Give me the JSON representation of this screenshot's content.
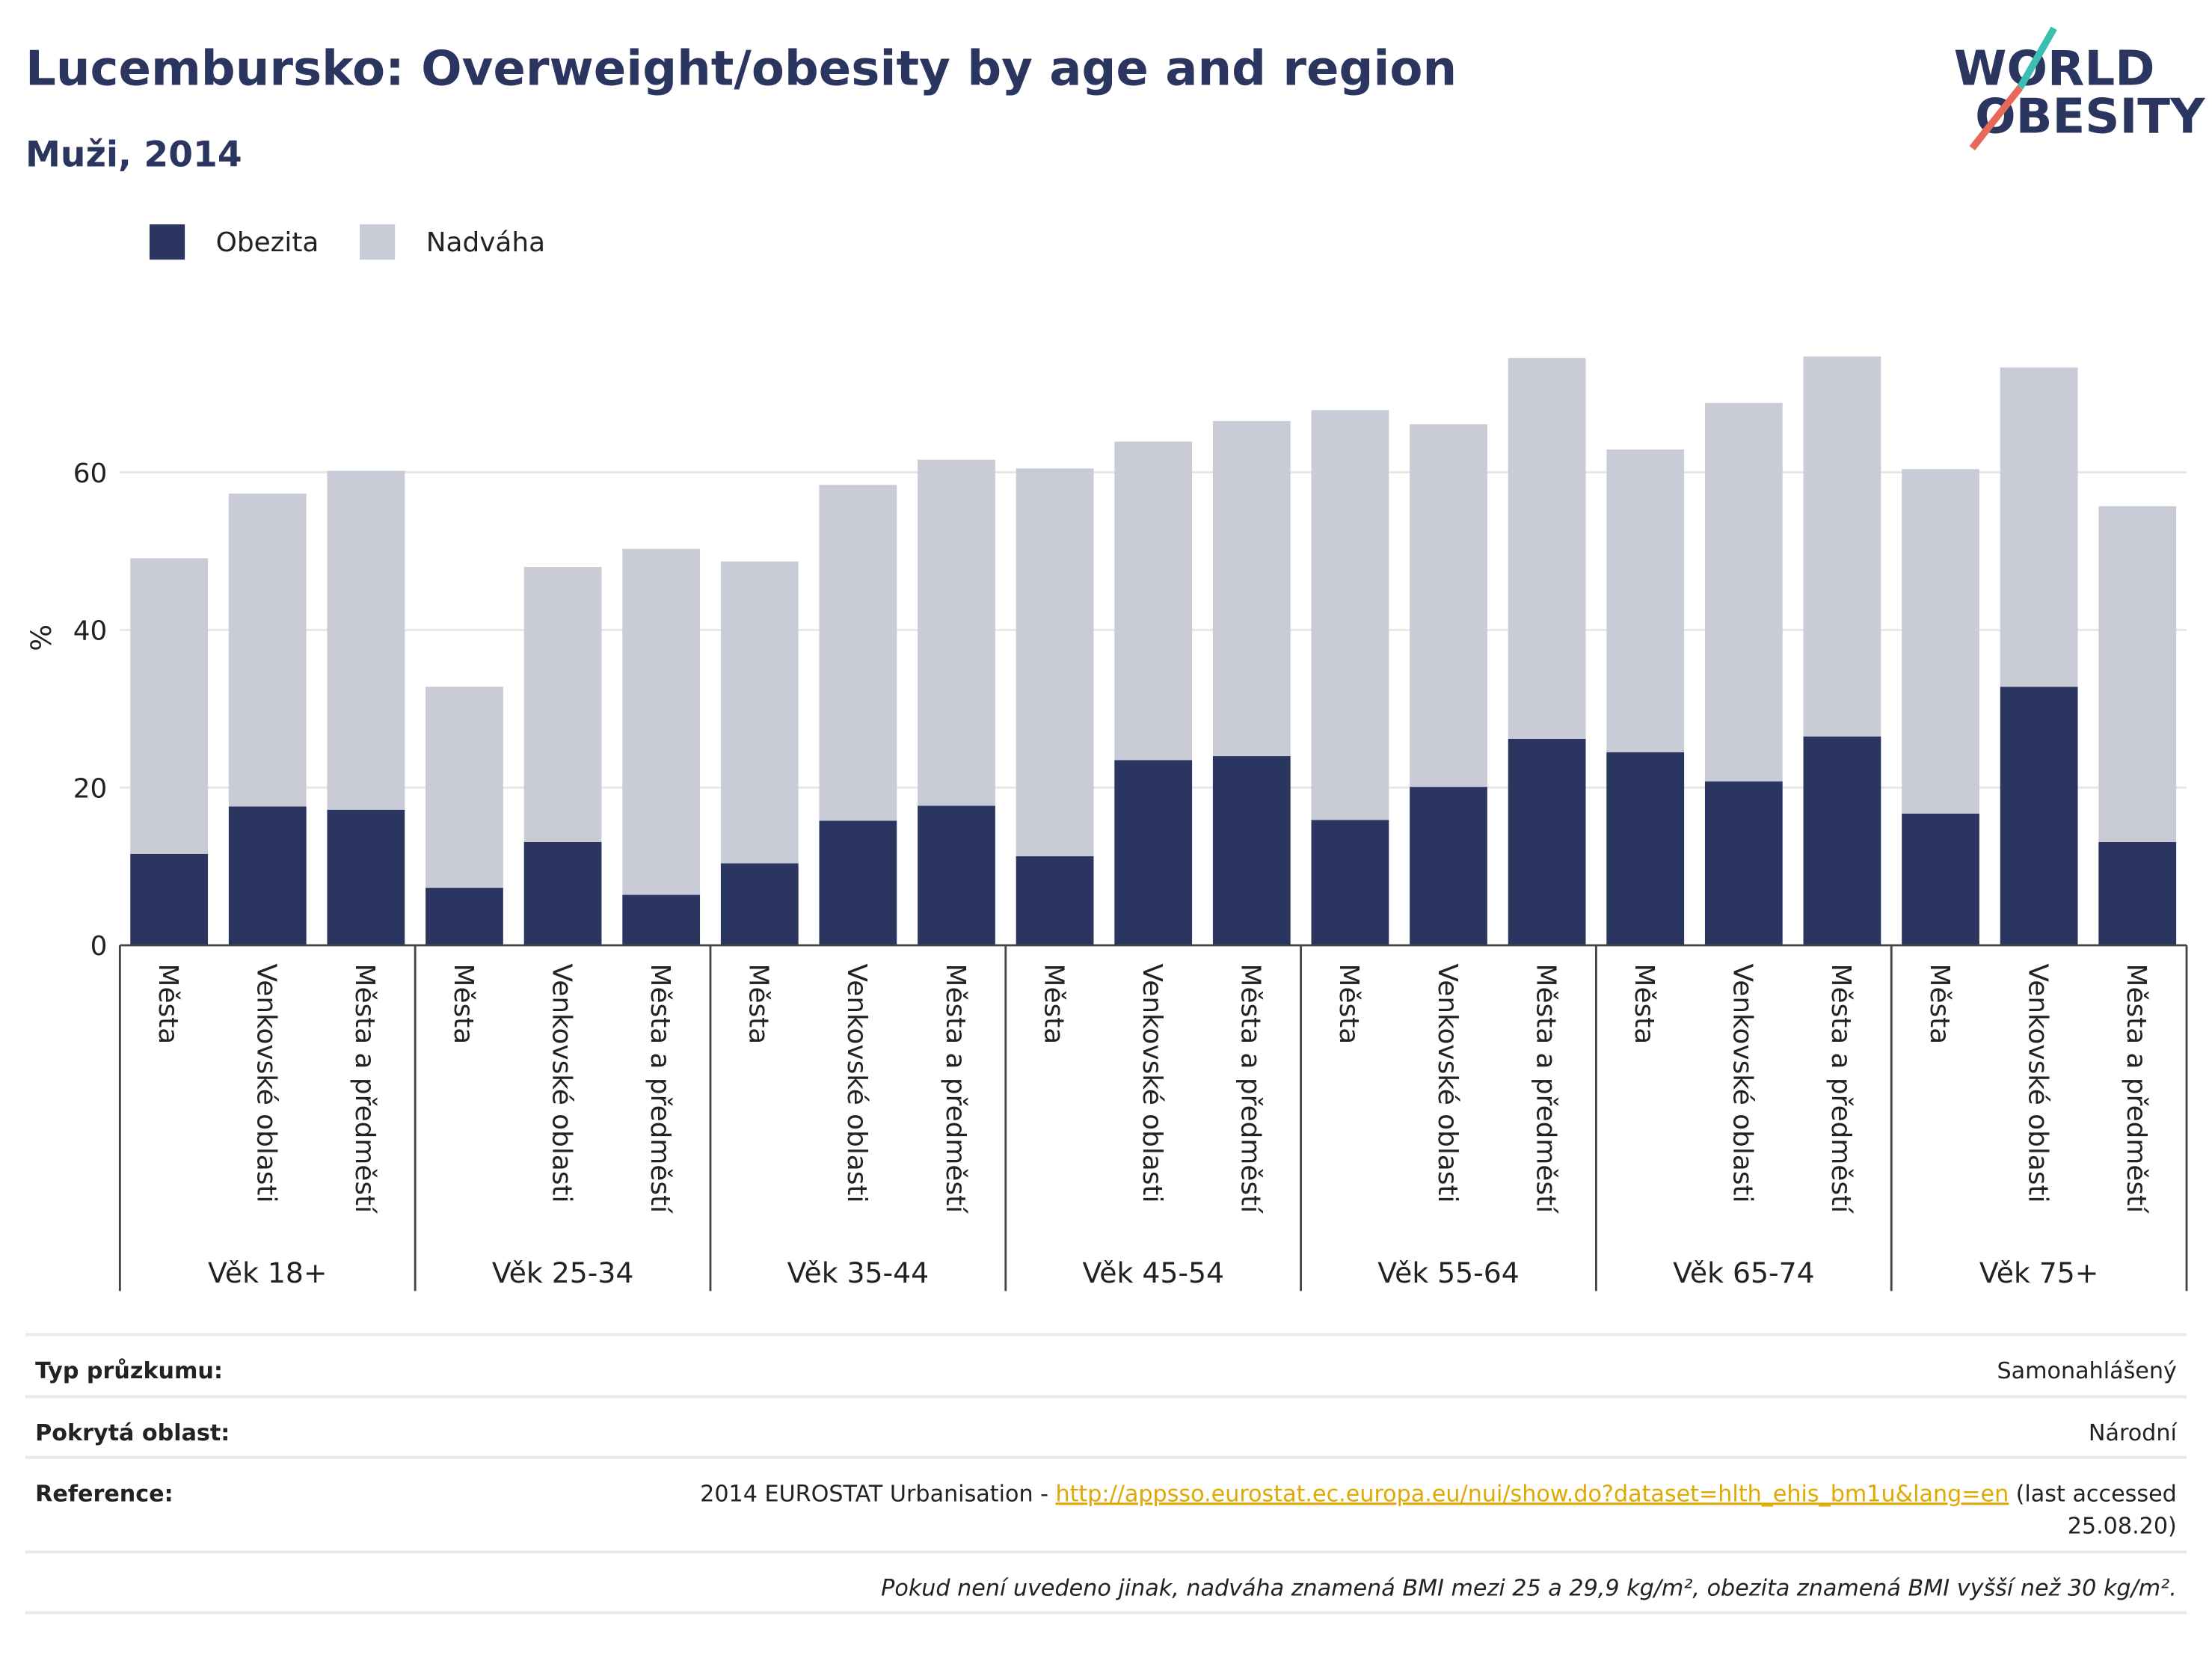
{
  "chart_data": {
    "type": "stacked_bar",
    "title": "Lucembursko: Overweight/obesity by age and region",
    "subtitle": "Muži, 2014",
    "y_label": "%",
    "categories": [
      "Města",
      "Venkovské oblasti",
      "Města a předměstí",
      "Města",
      "Venkovské oblasti",
      "Města a předměstí",
      "Města",
      "Venkovské oblasti",
      "Města a předměstí",
      "Města",
      "Venkovské oblasti",
      "Města a předměstí",
      "Města",
      "Venkovské oblasti",
      "Města a předměstí",
      "Města",
      "Venkovské oblasti",
      "Města a předměstí",
      "Města",
      "Venkovské oblasti",
      "Města a předměstí"
    ],
    "groups": [
      "Věk 18+",
      "Věk 25-34",
      "Věk 35-44",
      "Věk 45-54",
      "Věk 55-64",
      "Věk 65-74",
      "Věk 75+"
    ],
    "series": [
      {
        "name": "Obezita",
        "color": "#2a3560",
        "values": [
          11.6,
          17.6,
          17.2,
          7.3,
          13.1,
          6.4,
          10.4,
          15.8,
          17.7,
          11.3,
          23.5,
          24.0,
          15.9,
          20.1,
          26.2,
          24.5,
          20.8,
          26.5,
          16.7,
          32.8,
          13.1
        ]
      },
      {
        "name": "Nadváha",
        "color": "#c9cbd7",
        "values": [
          37.5,
          39.7,
          43.0,
          25.5,
          34.9,
          43.9,
          38.3,
          42.6,
          43.9,
          49.2,
          40.4,
          42.5,
          52.0,
          46.0,
          48.3,
          38.4,
          48.0,
          48.2,
          43.7,
          40.5,
          42.6
        ]
      }
    ],
    "ylim": [
      0,
      80
    ],
    "yticks": [
      0,
      20,
      40,
      60
    ],
    "grid": true,
    "legend": "top-left"
  },
  "logo": [
    "WORLD",
    "OBESITY"
  ],
  "info": {
    "rows": [
      {
        "label": "Typ průzkumu:",
        "value": "Samonahlášený"
      },
      {
        "label": "Pokrytá oblast:",
        "value": "Národní"
      }
    ],
    "reference": {
      "label": "Reference:",
      "prefix": "2014 EUROSTAT Urbanisation -",
      "link": "http://appsso.eurostat.ec.europa.eu/nui/show.do?dataset=hlth_ehis_bm1u&lang=en",
      "suffix_lines": [
        "(last accessed",
        "25.08.20)"
      ]
    },
    "note": "Pokud není uvedeno jinak, nadváha znamená BMI mezi 25 a 29,9 kg/m², obezita znamená BMI vyšší než 30 kg/m²."
  }
}
